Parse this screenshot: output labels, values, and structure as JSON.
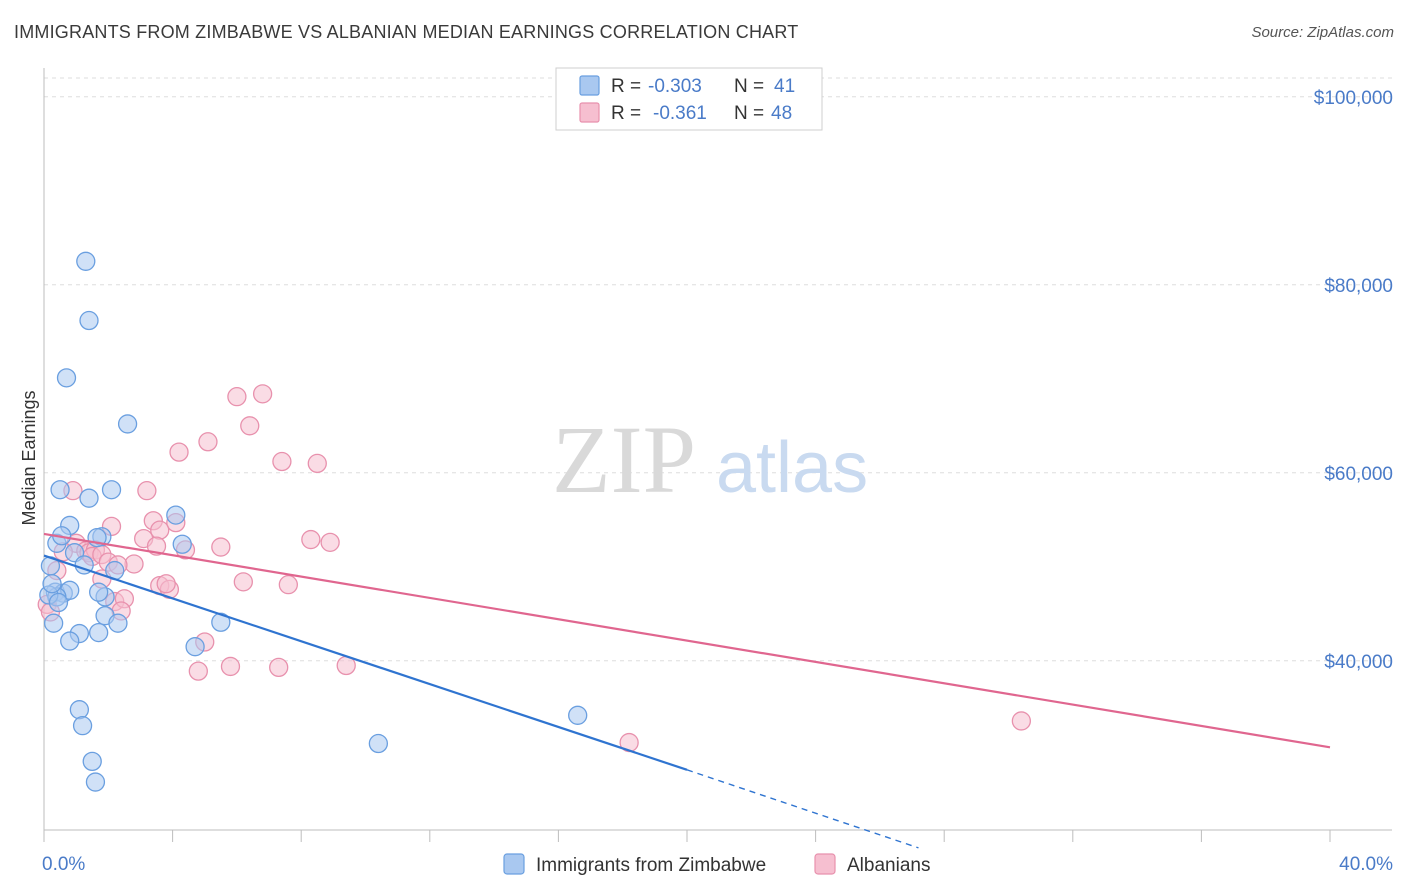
{
  "title": "IMMIGRANTS FROM ZIMBABWE VS ALBANIAN MEDIAN EARNINGS CORRELATION CHART",
  "source": "Source: ZipAtlas.com",
  "watermark": {
    "zip": "ZIP",
    "atlas": "atlas"
  },
  "colors": {
    "blue_fill": "#a9c8f0",
    "blue_stroke": "#6a9fe0",
    "blue_line": "#2f74d0",
    "pink_fill": "#f6bfd0",
    "pink_stroke": "#e891ad",
    "pink_line": "#e0668f",
    "tick_text": "#4a7bc8",
    "grid": "#dddddd"
  },
  "legend": {
    "rows": [
      {
        "r_label": "R =",
        "r_value": "-0.303",
        "n_label": "N =",
        "n_value": "41"
      },
      {
        "r_label": "R =",
        "r_value": "-0.361",
        "n_label": "N =",
        "n_value": "48"
      }
    ]
  },
  "chart_data": {
    "type": "scatter",
    "title": "IMMIGRANTS FROM ZIMBABWE VS ALBANIAN MEDIAN EARNINGS CORRELATION CHART",
    "xlabel": "",
    "ylabel": "Median Earnings",
    "xlim": [
      0,
      0.4
    ],
    "ylim": [
      22000,
      102000
    ],
    "x_tick_labels": [
      "0.0%",
      "40.0%"
    ],
    "y_ticks": [
      40000,
      60000,
      80000,
      100000
    ],
    "y_tick_labels": [
      "$40,000",
      "$60,000",
      "$80,000",
      "$100,000"
    ],
    "series": [
      {
        "name": "Immigrants from Zimbabwe",
        "color": "blue",
        "trend": {
          "x0": 0.0,
          "y0": 51200,
          "x1": 0.2,
          "y1": 28400,
          "dash_to_x": 0.272,
          "dash_to_y": 20100
        },
        "points": [
          [
            0.013,
            82500
          ],
          [
            0.014,
            76200
          ],
          [
            0.007,
            70100
          ],
          [
            0.026,
            65200
          ],
          [
            0.005,
            58200
          ],
          [
            0.014,
            57300
          ],
          [
            0.021,
            58200
          ],
          [
            0.008,
            54400
          ],
          [
            0.018,
            53200
          ],
          [
            0.004,
            52500
          ],
          [
            0.002,
            50100
          ],
          [
            0.022,
            49600
          ],
          [
            0.0035,
            47300
          ],
          [
            0.006,
            47200
          ],
          [
            0.008,
            47500
          ],
          [
            0.004,
            46800
          ],
          [
            0.019,
            46800
          ],
          [
            0.017,
            47300
          ],
          [
            0.003,
            44000
          ],
          [
            0.019,
            44800
          ],
          [
            0.023,
            44000
          ],
          [
            0.017,
            43000
          ],
          [
            0.011,
            42900
          ],
          [
            0.008,
            42100
          ],
          [
            0.041,
            55500
          ],
          [
            0.043,
            52400
          ],
          [
            0.055,
            44100
          ],
          [
            0.047,
            41500
          ],
          [
            0.011,
            34800
          ],
          [
            0.012,
            33100
          ],
          [
            0.015,
            29300
          ],
          [
            0.016,
            27100
          ],
          [
            0.104,
            31200
          ],
          [
            0.166,
            34200
          ],
          [
            0.0015,
            47000
          ],
          [
            0.0025,
            48200
          ],
          [
            0.0045,
            46200
          ],
          [
            0.0095,
            51500
          ],
          [
            0.0125,
            50200
          ],
          [
            0.0165,
            53100
          ],
          [
            0.0055,
            53300
          ]
        ]
      },
      {
        "name": "Albanians",
        "color": "pink",
        "trend": {
          "x0": 0.0,
          "y0": 53500,
          "x1": 0.4,
          "y1": 30800
        },
        "points": [
          [
            0.068,
            68400
          ],
          [
            0.06,
            68100
          ],
          [
            0.064,
            65000
          ],
          [
            0.051,
            63300
          ],
          [
            0.042,
            62200
          ],
          [
            0.074,
            61200
          ],
          [
            0.085,
            61000
          ],
          [
            0.032,
            58100
          ],
          [
            0.009,
            58100
          ],
          [
            0.041,
            54700
          ],
          [
            0.034,
            54900
          ],
          [
            0.021,
            54300
          ],
          [
            0.036,
            53900
          ],
          [
            0.031,
            53000
          ],
          [
            0.083,
            52900
          ],
          [
            0.089,
            52600
          ],
          [
            0.055,
            52100
          ],
          [
            0.044,
            51800
          ],
          [
            0.035,
            52200
          ],
          [
            0.01,
            52500
          ],
          [
            0.013,
            51700
          ],
          [
            0.014,
            51500
          ],
          [
            0.016,
            51800
          ],
          [
            0.015,
            51100
          ],
          [
            0.018,
            51300
          ],
          [
            0.006,
            51600
          ],
          [
            0.004,
            49600
          ],
          [
            0.02,
            50500
          ],
          [
            0.028,
            50300
          ],
          [
            0.023,
            50200
          ],
          [
            0.018,
            48700
          ],
          [
            0.036,
            48000
          ],
          [
            0.039,
            47600
          ],
          [
            0.038,
            48200
          ],
          [
            0.062,
            48400
          ],
          [
            0.076,
            48100
          ],
          [
            0.022,
            46300
          ],
          [
            0.025,
            46600
          ],
          [
            0.024,
            45300
          ],
          [
            0.05,
            42000
          ],
          [
            0.048,
            38900
          ],
          [
            0.058,
            39400
          ],
          [
            0.073,
            39300
          ],
          [
            0.094,
            39500
          ],
          [
            0.182,
            31300
          ],
          [
            0.304,
            33600
          ],
          [
            0.001,
            46000
          ],
          [
            0.002,
            45200
          ]
        ]
      }
    ]
  }
}
